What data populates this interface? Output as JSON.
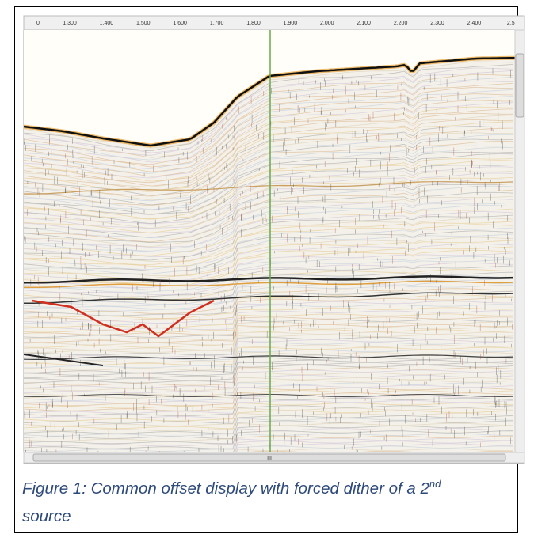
{
  "figure": {
    "ruler_labels": [
      "0",
      "1,300",
      "1,400",
      "1,500",
      "1,600",
      "1,700",
      "1,800",
      "1,900",
      "2,000",
      "2,100",
      "2,200",
      "2,300",
      "2,400",
      "2,5"
    ],
    "scroll_grip": "III"
  },
  "caption": {
    "text": "Figure 1: Common offset display with forced dither of a 2",
    "superscript": "nd",
    "text_after": " source"
  }
}
